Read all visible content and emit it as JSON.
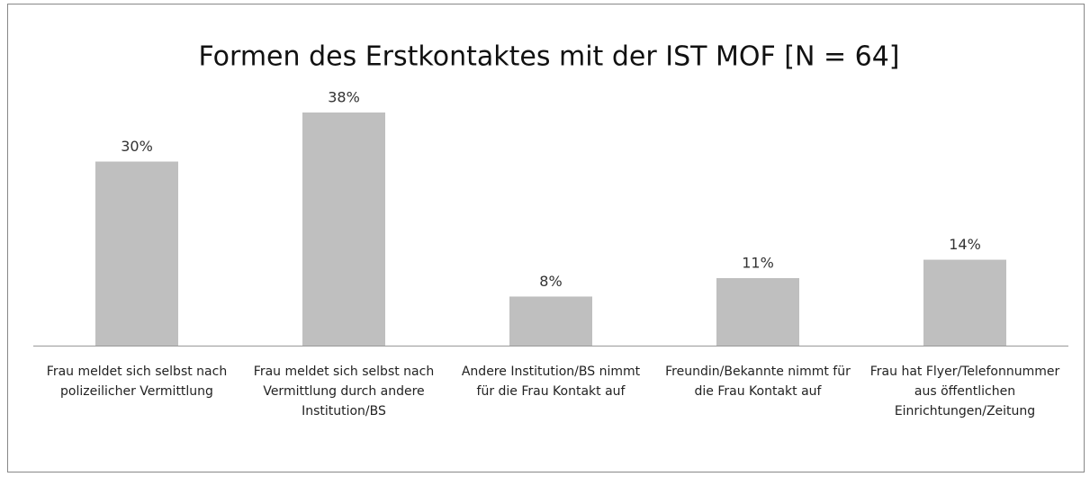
{
  "chart_data": {
    "type": "bar",
    "title": "Formen des Erstkontaktes mit der IST MOF [N = 64]",
    "categories": [
      "Frau meldet sich selbst nach polizeilicher Vermittlung",
      "Frau meldet sich selbst nach Vermittlung durch andere Institution/BS",
      "Andere Institution/BS nimmt für die Frau Kontakt auf",
      "Freundin/Bekannte nimmt für die Frau Kontakt auf",
      "Frau hat Flyer/Telefonnummer aus öffentlichen Einrichtungen/Zeitung"
    ],
    "values": [
      30,
      38,
      8,
      11,
      14
    ],
    "value_labels": [
      "30%",
      "38%",
      "8%",
      "11%",
      "14%"
    ],
    "color": "#bfbfbf"
  }
}
